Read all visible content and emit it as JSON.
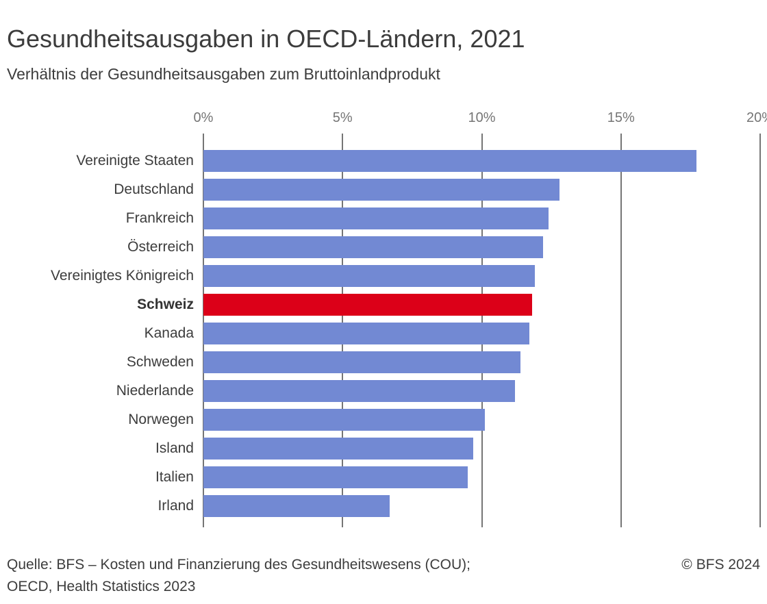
{
  "title": "Gesundheitsausgaben in OECD-Ländern, 2021",
  "subtitle": "Verhältnis der Gesundheitsausgaben zum Bruttoinlandprodukt",
  "footer": {
    "source_line1": "Quelle: BFS – Kosten und Finanzierung des Gesundheitswesens (COU);",
    "source_line2": "OECD, Health Statistics 2023",
    "copyright": "© BFS 2024"
  },
  "colors": {
    "bar": "#7289d3",
    "highlight_bar": "#dc0018",
    "gridline": "#757575",
    "axis_label": "#757575",
    "text": "#3c3c3c"
  },
  "chart_data": {
    "type": "bar",
    "orientation": "horizontal",
    "title": "Gesundheitsausgaben in OECD-Ländern, 2021",
    "subtitle": "Verhältnis der Gesundheitsausgaben zum Bruttoinlandprodukt",
    "unit": "% des BIP",
    "categories": [
      "Vereinigte Staaten",
      "Deutschland",
      "Frankreich",
      "Österreich",
      "Vereinigtes Königreich",
      "Schweiz",
      "Kanada",
      "Schweden",
      "Niederlande",
      "Norwegen",
      "Island",
      "Italien",
      "Irland"
    ],
    "values": [
      17.7,
      12.8,
      12.4,
      12.2,
      11.9,
      11.8,
      11.7,
      11.4,
      11.2,
      10.1,
      9.7,
      9.5,
      6.7
    ],
    "highlighted_category": "Schweiz",
    "xlim": [
      0,
      20
    ],
    "x_ticks": [
      {
        "label": "0%",
        "value": 0
      },
      {
        "label": "5%",
        "value": 5
      },
      {
        "label": "10%",
        "value": 10
      },
      {
        "label": "15%",
        "value": 15
      },
      {
        "label": "20%",
        "value": 20
      }
    ],
    "grid": "vertical-only",
    "legend": "none",
    "axis_position": "top"
  }
}
